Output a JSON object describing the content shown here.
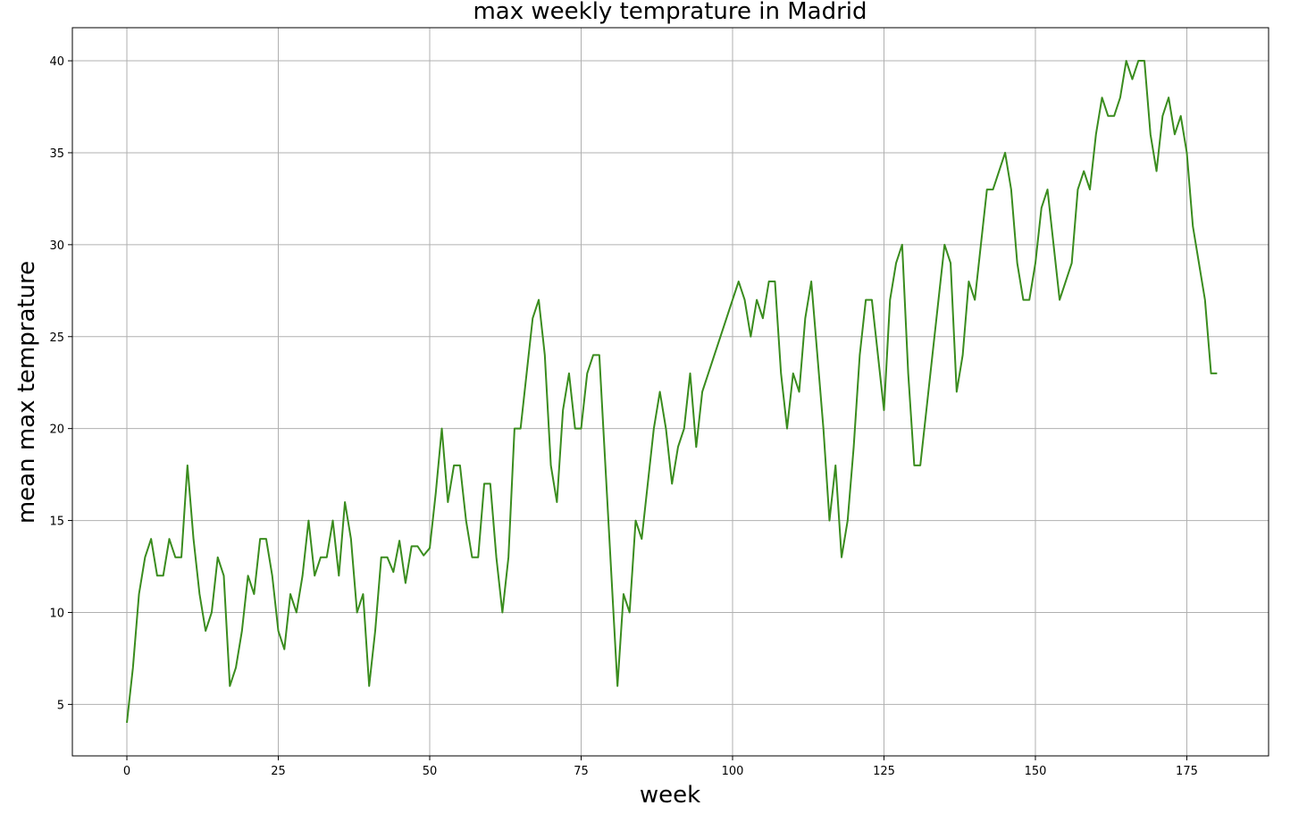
{
  "chart_data": {
    "type": "line",
    "title": "max weekly temprature in Madrid",
    "xlabel": "week",
    "ylabel": "mean max temprature",
    "xlim": [
      -9,
      188.5
    ],
    "ylim": [
      2.2,
      41.8
    ],
    "xticks": [
      0,
      25,
      50,
      75,
      100,
      125,
      150,
      175
    ],
    "yticks": [
      5,
      10,
      15,
      20,
      25,
      30,
      35,
      40
    ],
    "grid": true,
    "line_color": "#3a8c1e",
    "series": [
      {
        "x": [
          0,
          1,
          2,
          3,
          4,
          5,
          6,
          7,
          8,
          9,
          10,
          11,
          12,
          13,
          14,
          15,
          16,
          17,
          18,
          19,
          20,
          21,
          22,
          23,
          24,
          25,
          26,
          27,
          28,
          29,
          30,
          31,
          32,
          33,
          34,
          35,
          36,
          37,
          38,
          39,
          40,
          41,
          42,
          43,
          44,
          45,
          46,
          47,
          48,
          49,
          50,
          51,
          52,
          53,
          54,
          55,
          56,
          57,
          58,
          59,
          60,
          61,
          62,
          63,
          64,
          65,
          66,
          67,
          68,
          69,
          70,
          71,
          72,
          73,
          74,
          75,
          76,
          77,
          78,
          79,
          80,
          81,
          82,
          83,
          84,
          85,
          86,
          87,
          88,
          89,
          90,
          91,
          92,
          93,
          94,
          95,
          96,
          97,
          98,
          99,
          100,
          101,
          102,
          103,
          104,
          105,
          106,
          107,
          108,
          109,
          110,
          111,
          112,
          113,
          114,
          115,
          116,
          117,
          118,
          119,
          120,
          121,
          122,
          123,
          124,
          125,
          126,
          127,
          128,
          129,
          130,
          131,
          132,
          133,
          134,
          135,
          136,
          137,
          138,
          139,
          140,
          141,
          142,
          143,
          144,
          145,
          146,
          147,
          148,
          149,
          150,
          151,
          152,
          153,
          154,
          155,
          156,
          157,
          158,
          159,
          160,
          161,
          162,
          163,
          164,
          165,
          166,
          167,
          168,
          169,
          170,
          171,
          172,
          173,
          174,
          175,
          176,
          177,
          178,
          179,
          180
        ],
        "values": [
          4,
          7,
          11,
          13,
          14,
          12,
          12,
          14,
          13,
          13,
          18,
          14,
          11,
          9,
          10,
          13,
          12,
          6,
          7,
          9,
          12,
          11,
          14,
          14,
          12,
          9,
          8,
          11,
          10,
          12,
          15,
          12,
          13,
          13,
          15,
          12,
          16,
          14,
          10,
          11,
          6,
          9,
          13,
          13,
          12.2,
          13.9,
          11.6,
          13.6,
          13.6,
          13.1,
          13.5,
          16.5,
          20,
          16,
          18,
          18,
          15,
          13,
          13,
          17,
          17,
          13,
          10,
          13,
          20,
          20,
          23,
          26,
          27,
          24,
          18,
          16,
          21,
          23,
          20,
          20,
          23,
          24,
          24,
          18,
          12,
          6,
          11,
          10,
          15,
          14,
          17,
          20,
          22,
          20,
          17,
          19,
          20,
          23,
          19,
          22,
          23,
          24,
          25,
          26,
          27,
          28,
          27,
          25,
          27,
          26,
          28,
          28,
          23,
          20,
          23,
          22,
          26,
          28,
          24,
          20,
          15,
          18,
          13,
          15,
          19,
          24,
          27,
          27,
          24,
          21,
          27,
          29,
          30,
          23,
          18,
          18,
          21,
          24,
          27,
          30,
          29,
          22,
          24,
          28,
          27,
          30,
          33,
          33,
          34,
          35,
          33,
          29,
          27,
          27,
          29,
          32,
          33,
          30,
          27,
          28,
          29,
          33,
          34,
          33,
          36,
          38,
          37,
          37,
          38,
          40,
          39,
          40,
          40,
          36,
          34,
          37,
          38,
          36,
          37,
          35,
          31,
          29,
          27,
          23,
          23
        ]
      }
    ]
  }
}
